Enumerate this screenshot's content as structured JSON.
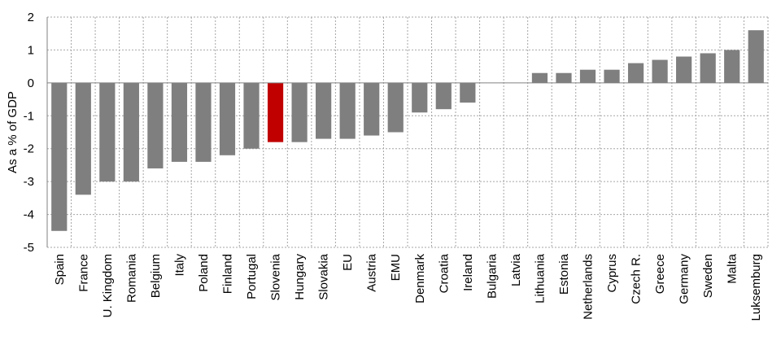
{
  "chart_data": {
    "type": "bar",
    "title": "",
    "xlabel": "",
    "ylabel": "As a % of GDP",
    "ylim": [
      -5,
      2
    ],
    "yticks": [
      -5,
      -4,
      -3,
      -2,
      -1,
      0,
      1,
      2
    ],
    "grid": true,
    "categories": [
      "Spain",
      "France",
      "U. Kingdom",
      "Romania",
      "Belgium",
      "Italy",
      "Poland",
      "Finland",
      "Portugal",
      "Slovenia",
      "Hungary",
      "Slovakia",
      "EU",
      "Austria",
      "EMU",
      "Denmark",
      "Croatia",
      "Ireland",
      "Bulgaria",
      "Latvia",
      "Lithuania",
      "Estonia",
      "Netherlands",
      "Cyprus",
      "Czech R.",
      "Greece",
      "Germany",
      "Sweden",
      "Malta",
      "Luksemburg"
    ],
    "values": [
      -4.5,
      -3.4,
      -3.0,
      -3.0,
      -2.6,
      -2.4,
      -2.4,
      -2.2,
      -2.0,
      -1.8,
      -1.8,
      -1.7,
      -1.7,
      -1.6,
      -1.5,
      -0.9,
      -0.8,
      -0.6,
      0.0,
      0.0,
      0.3,
      0.3,
      0.4,
      0.4,
      0.6,
      0.7,
      0.8,
      0.9,
      1.0,
      1.6
    ],
    "colors": {
      "default": "#7f7f7f",
      "highlight": "#c00000"
    },
    "highlight_category": "Slovenia"
  }
}
